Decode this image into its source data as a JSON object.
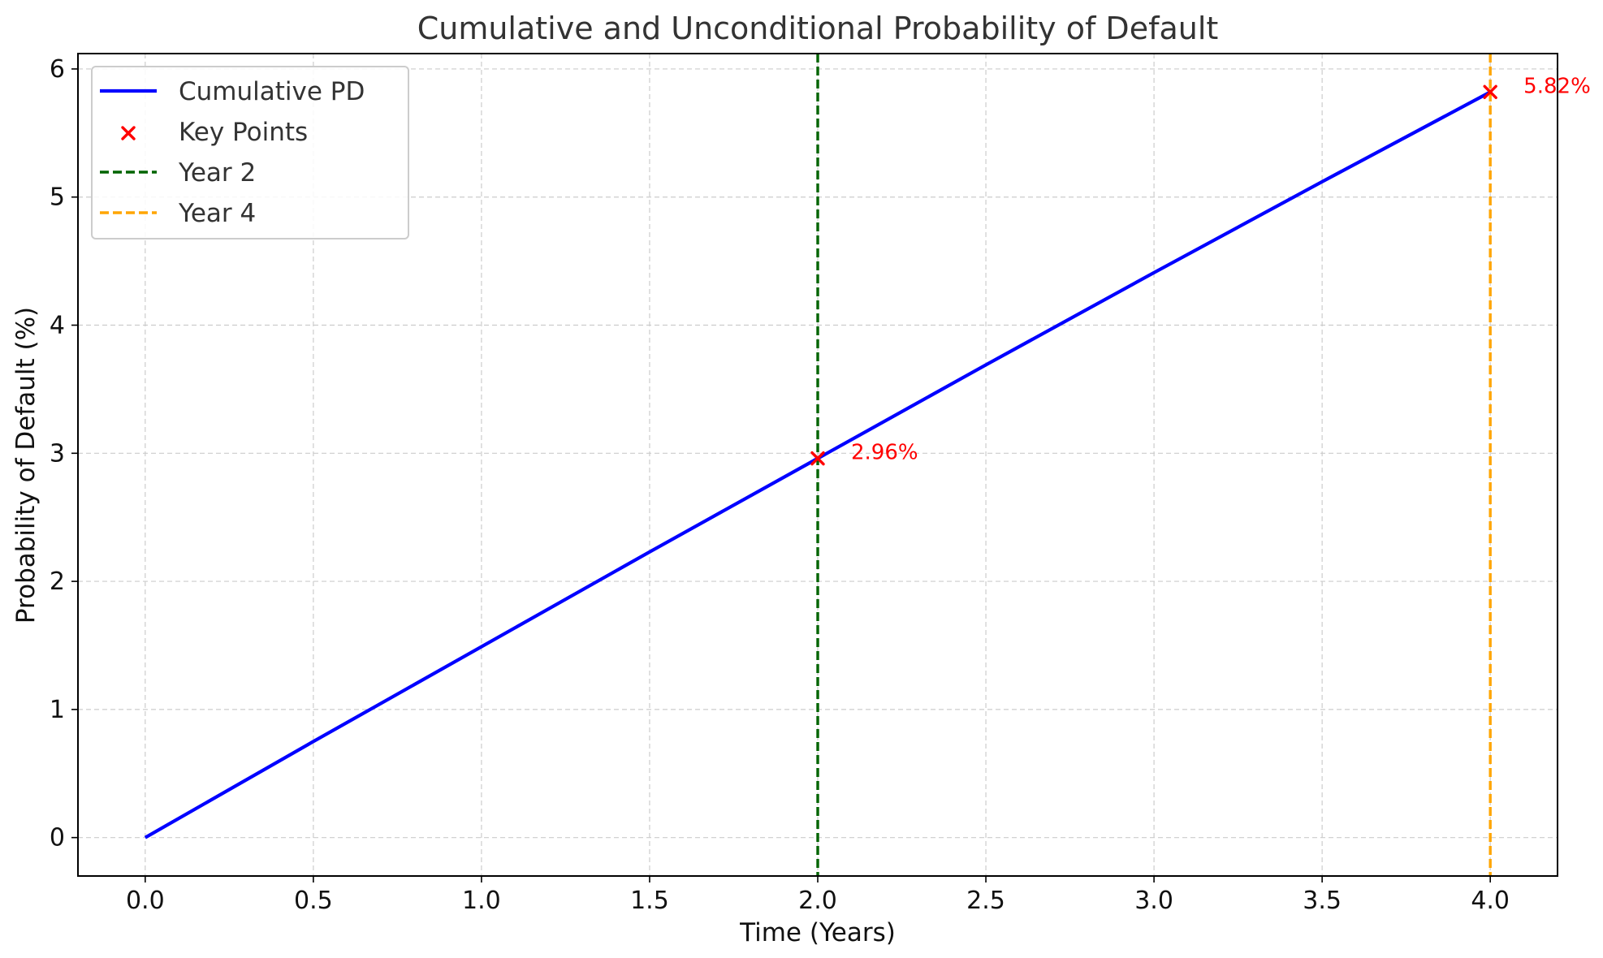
{
  "chart_data": {
    "type": "line",
    "title": "Cumulative and Unconditional Probability of Default",
    "xlabel": "Time (Years)",
    "ylabel": "Probability of Default (%)",
    "xlim": [
      -0.2,
      4.2
    ],
    "ylim": [
      -0.3,
      6.12
    ],
    "xticks": [
      0.0,
      0.5,
      1.0,
      1.5,
      2.0,
      2.5,
      3.0,
      3.5,
      4.0
    ],
    "xtick_labels": [
      "0.0",
      "0.5",
      "1.0",
      "1.5",
      "2.0",
      "2.5",
      "3.0",
      "3.5",
      "4.0"
    ],
    "yticks": [
      0,
      1,
      2,
      3,
      4,
      5,
      6
    ],
    "ytick_labels": [
      "0",
      "1",
      "2",
      "3",
      "4",
      "5",
      "6"
    ],
    "grid": true,
    "legend_position": "top-left",
    "series": [
      {
        "name": "Cumulative PD",
        "kind": "line",
        "color": "#0000ff",
        "x": [
          0.0,
          0.5,
          1.0,
          1.5,
          2.0,
          2.5,
          3.0,
          3.5,
          4.0
        ],
        "y": [
          0.0,
          0.75,
          1.49,
          2.23,
          2.96,
          3.69,
          4.41,
          5.12,
          5.82
        ]
      },
      {
        "name": "Key Points",
        "kind": "scatter",
        "marker": "x",
        "color": "#ff0000",
        "x": [
          2.0,
          4.0
        ],
        "y": [
          2.96,
          5.82
        ]
      },
      {
        "name": "Year 2",
        "kind": "vline",
        "color": "#006400",
        "x": 2.0
      },
      {
        "name": "Year 4",
        "kind": "vline",
        "color": "#ffa500",
        "x": 4.0
      }
    ],
    "annotations": [
      {
        "text": "2.96%",
        "x": 2.0,
        "y": 2.96,
        "color": "#ff0000"
      },
      {
        "text": "5.82%",
        "x": 4.0,
        "y": 5.82,
        "color": "#ff0000"
      }
    ]
  }
}
